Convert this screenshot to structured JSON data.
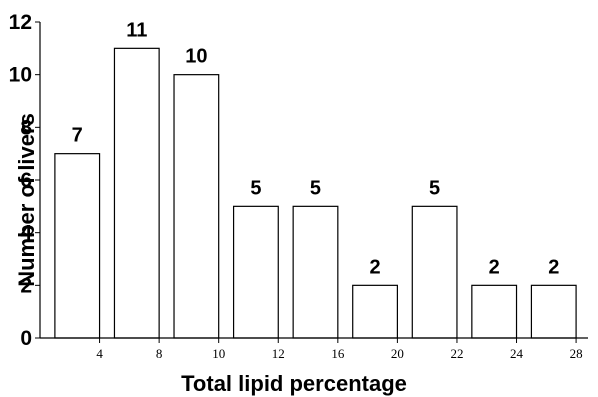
{
  "chart_data": {
    "type": "bar",
    "bars": [
      {
        "x_start": 2.5,
        "x_end": 4.0,
        "value": 7,
        "label": "7"
      },
      {
        "x_start": 4.5,
        "x_end": 6.0,
        "value": 11,
        "label": "11"
      },
      {
        "x_start": 6.5,
        "x_end": 8.0,
        "value": 10,
        "label": "10"
      },
      {
        "x_start": 8.5,
        "x_end": 10.0,
        "value": 5,
        "label": "5"
      },
      {
        "x_start": 10.5,
        "x_end": 12.0,
        "value": 5,
        "label": "5"
      },
      {
        "x_start": 12.5,
        "x_end": 14.0,
        "value": 2,
        "label": "2"
      },
      {
        "x_start": 14.5,
        "x_end": 16.0,
        "value": 5,
        "label": "5"
      },
      {
        "x_start": 16.5,
        "x_end": 18.0,
        "value": 2,
        "label": "2"
      },
      {
        "x_start": 18.5,
        "x_end": 20.0,
        "value": 2,
        "label": "2"
      }
    ],
    "x_ticks": [
      4,
      6,
      8,
      10,
      12,
      14,
      16,
      18,
      20
    ],
    "x_tick_labels": [
      "4",
      "8",
      "10",
      "12",
      "16",
      "20",
      "22",
      "24",
      "28"
    ],
    "y_ticks": [
      0,
      2,
      4,
      6,
      8,
      10,
      12
    ],
    "y_tick_labels": [
      "0",
      "2",
      "4",
      "6",
      "8",
      "10",
      "12"
    ],
    "xlim": [
      2,
      20.4
    ],
    "ylim": [
      0,
      12
    ],
    "xlabel": "Total lipid percentage",
    "ylabel": "Number of livers",
    "bar_fill": "#ffffff",
    "bar_stroke": "#000000",
    "grid": false
  }
}
